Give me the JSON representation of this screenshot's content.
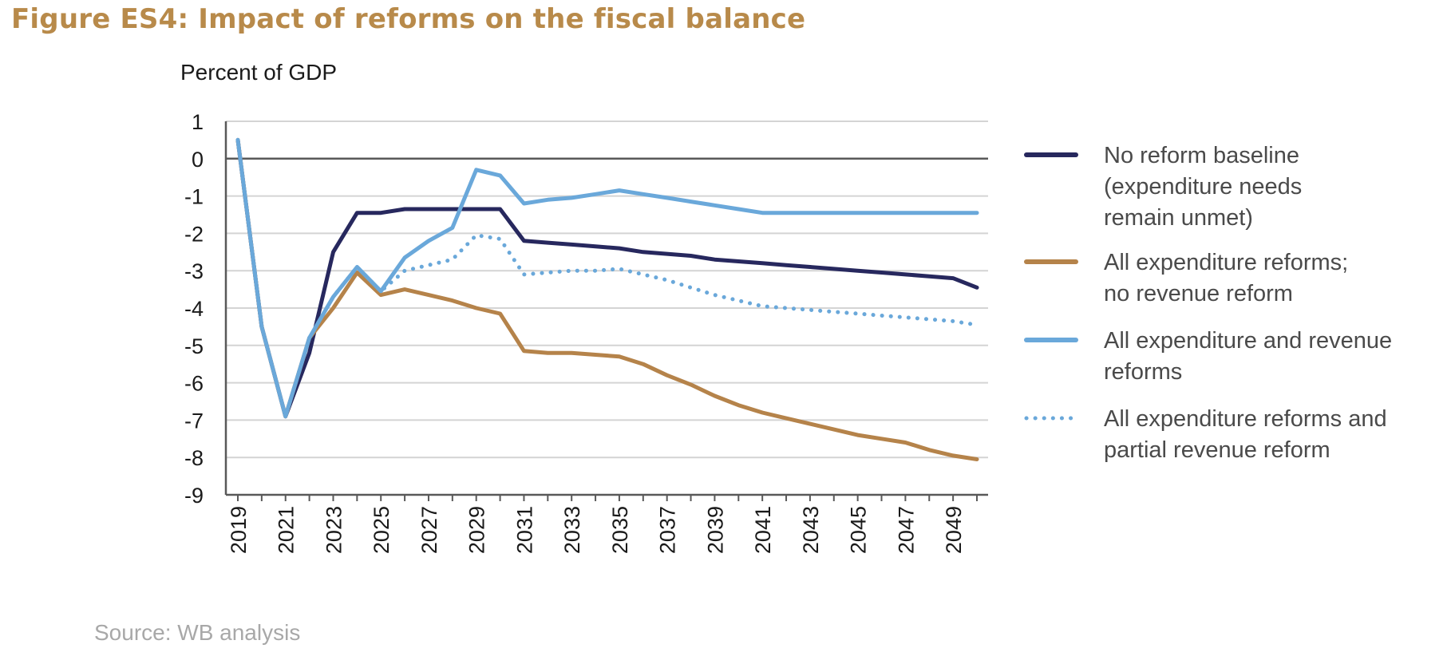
{
  "figure": {
    "title": "Figure ES4: Impact of reforms on the fiscal balance",
    "source": "Source: WB analysis"
  },
  "chart_data": {
    "type": "line",
    "title": "Figure ES4: Impact of reforms on the fiscal balance",
    "ylabel": "Percent of GDP",
    "xlabel": "",
    "ylim": [
      -9,
      1
    ],
    "yticks": [
      1,
      0,
      -1,
      -2,
      -3,
      -4,
      -5,
      -6,
      -7,
      -8,
      -9
    ],
    "xlim": [
      2019,
      2050
    ],
    "xticks": [
      2019,
      2021,
      2023,
      2025,
      2027,
      2029,
      2031,
      2033,
      2035,
      2037,
      2039,
      2041,
      2043,
      2045,
      2047,
      2049
    ],
    "grid": true,
    "legend_position": "right",
    "x": [
      2019,
      2020,
      2021,
      2022,
      2023,
      2024,
      2025,
      2026,
      2027,
      2028,
      2029,
      2030,
      2031,
      2032,
      2033,
      2034,
      2035,
      2036,
      2037,
      2038,
      2039,
      2040,
      2041,
      2042,
      2043,
      2044,
      2045,
      2046,
      2047,
      2048,
      2049,
      2050
    ],
    "series": [
      {
        "name": "No reform baseline (expenditure needs remain unmet)",
        "legend_lines": [
          "No reform baseline",
          "(expenditure needs",
          "remain unmet)"
        ],
        "color": "#27285e",
        "style": "solid",
        "values": [
          0.5,
          -4.5,
          -6.9,
          -5.2,
          -2.5,
          -1.45,
          -1.45,
          -1.35,
          -1.35,
          -1.35,
          -1.35,
          -1.35,
          -2.2,
          -2.25,
          -2.3,
          -2.35,
          -2.4,
          -2.5,
          -2.55,
          -2.6,
          -2.7,
          -2.75,
          -2.8,
          -2.85,
          -2.9,
          -2.95,
          -3.0,
          -3.05,
          -3.1,
          -3.15,
          -3.2,
          -3.45
        ]
      },
      {
        "name": "All expenditure reforms; no revenue reform",
        "legend_lines": [
          "All expenditure reforms;",
          "no revenue reform"
        ],
        "color": "#b5834a",
        "style": "solid",
        "values": [
          0.5,
          -4.5,
          -6.9,
          -4.8,
          -4.0,
          -3.05,
          -3.65,
          -3.5,
          -3.65,
          -3.8,
          -4.0,
          -4.15,
          -5.15,
          -5.2,
          -5.2,
          -5.25,
          -5.3,
          -5.5,
          -5.8,
          -6.05,
          -6.35,
          -6.6,
          -6.8,
          -6.95,
          -7.1,
          -7.25,
          -7.4,
          -7.5,
          -7.6,
          -7.8,
          -7.95,
          -8.05
        ]
      },
      {
        "name": "All expenditure and revenue reforms",
        "legend_lines": [
          "All expenditure and revenue",
          "reforms"
        ],
        "color": "#6aa8da",
        "style": "solid",
        "values": [
          0.5,
          -4.5,
          -6.9,
          -4.8,
          -3.7,
          -2.9,
          -3.55,
          -2.65,
          -2.2,
          -1.85,
          -0.3,
          -0.45,
          -1.2,
          -1.1,
          -1.05,
          -0.95,
          -0.85,
          -0.95,
          -1.05,
          -1.15,
          -1.25,
          -1.35,
          -1.45,
          -1.45,
          -1.45,
          -1.45,
          -1.45,
          -1.45,
          -1.45,
          -1.45,
          -1.45,
          -1.45
        ]
      },
      {
        "name": "All expenditure reforms and partial revenue reform",
        "legend_lines": [
          "All expenditure reforms and",
          "partial revenue reform"
        ],
        "color": "#6aa8da",
        "style": "dotted",
        "values": [
          0.5,
          -4.5,
          -6.9,
          -4.8,
          -3.7,
          -2.9,
          -3.55,
          -3.0,
          -2.85,
          -2.7,
          -2.05,
          -2.15,
          -3.1,
          -3.05,
          -3.0,
          -3.0,
          -2.95,
          -3.1,
          -3.25,
          -3.45,
          -3.65,
          -3.8,
          -3.95,
          -4.0,
          -4.05,
          -4.1,
          -4.15,
          -4.2,
          -4.25,
          -4.3,
          -4.35,
          -4.45
        ]
      }
    ]
  }
}
